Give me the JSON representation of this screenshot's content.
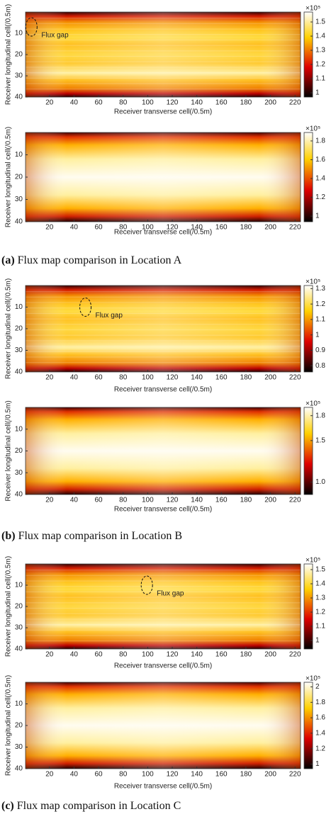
{
  "chart_data": [
    {
      "type": "heatmap",
      "xlabel": "Receiver transverse cell(/0.5m)",
      "ylabel": "Receiver longitudinal cell(/0.5m)",
      "xlim": [
        0.5,
        224.5
      ],
      "xticks": [
        20,
        40,
        60,
        80,
        100,
        120,
        140,
        160,
        180,
        200,
        220
      ],
      "ylim": [
        0,
        40
      ],
      "yticks": [
        10,
        20,
        30,
        40
      ],
      "colormap": "hot",
      "clim": [
        0.97,
        1.57
      ],
      "cticks": [
        1,
        1.1,
        1.2,
        1.3,
        1.4,
        1.5
      ],
      "colorbar_exponent": "×10⁵",
      "annotation": "Flux gap",
      "pattern": "measured"
    },
    {
      "type": "heatmap",
      "xlabel": "Receiver transverse cell(/0.5m)",
      "ylabel": "Receiver longitudinal cell(/0.5m)",
      "xlim": [
        0.5,
        224.5
      ],
      "xticks": [
        20,
        40,
        60,
        80,
        100,
        120,
        140,
        160,
        180,
        200,
        220
      ],
      "ylim": [
        0,
        40
      ],
      "yticks": [
        10,
        20,
        30,
        40
      ],
      "colormap": "hot",
      "clim": [
        0.94,
        1.89
      ],
      "cticks": [
        1,
        1.2,
        1.4,
        1.6,
        1.8
      ],
      "colorbar_exponent": "×10⁵",
      "pattern": "simulated",
      "caption_label": "(a)",
      "caption": "Flux map comparison in Location A"
    },
    {
      "type": "heatmap",
      "xlabel": "Receiver transverse cell(/0.5m)",
      "ylabel": "Receiver longitudinal cell(/0.5m)",
      "xlim": [
        0.5,
        224.5
      ],
      "xticks": [
        20,
        40,
        60,
        80,
        100,
        120,
        140,
        160,
        180,
        200,
        220
      ],
      "ylim": [
        0,
        40
      ],
      "yticks": [
        10,
        20,
        30,
        40
      ],
      "colormap": "hot",
      "clim": [
        0.76,
        1.32
      ],
      "cticks": [
        0.8,
        0.9,
        1,
        1.1,
        1.2,
        1.3
      ],
      "colorbar_exponent": "×10⁵",
      "annotation": "Flux gap",
      "pattern": "measured"
    },
    {
      "type": "heatmap",
      "xlabel": "Receiver transverse cell(/0.5m)",
      "ylabel": "Receiver longitudinal cell(/0.5m)",
      "xlim": [
        0.5,
        224.5
      ],
      "xticks": [
        20,
        40,
        60,
        80,
        100,
        120,
        140,
        160,
        180,
        200,
        220
      ],
      "ylim": [
        0,
        40
      ],
      "yticks": [
        10,
        20,
        30,
        40
      ],
      "colormap": "hot",
      "clim": [
        0.85,
        1.9
      ],
      "cticks": [
        {
          "value": 1,
          "label": "1.0"
        },
        1.5,
        1.8
      ],
      "colorbar_exponent": "×10⁵",
      "pattern": "simulated",
      "caption_label": "(b)",
      "caption": "Flux map comparison in Location B"
    },
    {
      "type": "heatmap",
      "xlabel": "Receiver transverse cell(/0.5m)",
      "ylabel": "Receiver longitudinal cell(/0.5m)",
      "xlim": [
        0.5,
        224.5
      ],
      "xticks": [
        20,
        40,
        60,
        80,
        100,
        120,
        140,
        160,
        180,
        200,
        220
      ],
      "ylim": [
        0,
        40
      ],
      "yticks": [
        10,
        20,
        30,
        40
      ],
      "colormap": "hot",
      "clim": [
        0.94,
        1.54
      ],
      "cticks": [
        1,
        1.1,
        1.2,
        1.3,
        1.4,
        1.5
      ],
      "colorbar_exponent": "×10⁵",
      "annotation": "Flux gap",
      "pattern": "measured"
    },
    {
      "type": "heatmap",
      "xlabel": "Receiver transverse cell(/0.5m)",
      "ylabel": "Receiver longitudinal cell(/0.5m)",
      "xlim": [
        0.5,
        224.5
      ],
      "xticks": [
        20,
        40,
        60,
        80,
        100,
        120,
        140,
        160,
        180,
        200,
        220
      ],
      "ylim": [
        0,
        40
      ],
      "yticks": [
        10,
        20,
        30,
        40
      ],
      "colormap": "hot",
      "clim": [
        0.94,
        2.06
      ],
      "cticks": [
        1,
        1.2,
        1.4,
        1.6,
        1.8,
        2
      ],
      "colorbar_exponent": "×10⁵",
      "pattern": "simulated",
      "caption_label": "(c)",
      "caption": "Flux map comparison in Location C"
    }
  ]
}
